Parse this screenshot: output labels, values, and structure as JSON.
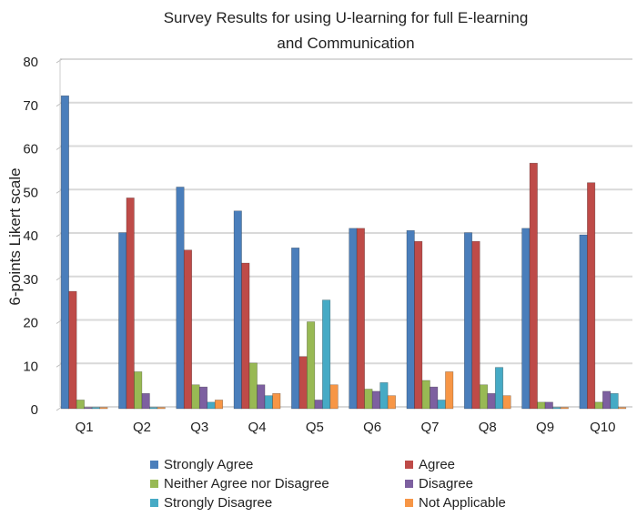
{
  "chart_data": {
    "type": "bar",
    "title": "Survey Results for using U-learning for full E-learning and Communication",
    "title_lines": [
      "Survey Results for using U-learning for full E-learning",
      "and Communication"
    ],
    "xlabel": "",
    "ylabel": "6-points Likert scale",
    "ylim": [
      0,
      80
    ],
    "yticks": [
      0,
      10,
      20,
      30,
      40,
      50,
      60,
      70,
      80
    ],
    "grid": true,
    "legend_position": "bottom",
    "categories": [
      "Q1",
      "Q2",
      "Q3",
      "Q4",
      "Q5",
      "Q6",
      "Q7",
      "Q8",
      "Q9",
      "Q10"
    ],
    "series": [
      {
        "name": "Strongly Agree",
        "color": "#4a7ebb",
        "values": [
          72,
          40.5,
          51,
          45.5,
          37,
          41.5,
          41,
          40.5,
          41.5,
          40
        ]
      },
      {
        "name": "Agree",
        "color": "#be4b48",
        "values": [
          27,
          48.5,
          36.5,
          33.5,
          12,
          41.5,
          38.5,
          38.5,
          56.5,
          52
        ]
      },
      {
        "name": "Neither Agree nor Disagree",
        "color": "#98b954",
        "values": [
          2,
          8.5,
          5.5,
          10.5,
          20,
          4.5,
          6.5,
          5.5,
          1.5,
          1.5
        ]
      },
      {
        "name": "Disagree",
        "color": "#7d60a0",
        "values": [
          0.3,
          3.5,
          5,
          5.5,
          2,
          4,
          5,
          3.5,
          1.5,
          4
        ]
      },
      {
        "name": "Strongly Disagree",
        "color": "#46aac5",
        "values": [
          0.3,
          0.3,
          1.5,
          3,
          25,
          6,
          2,
          9.5,
          0.3,
          3.5
        ]
      },
      {
        "name": "Not Applicable",
        "color": "#f79646",
        "values": [
          0.3,
          0.3,
          2,
          3.5,
          5.5,
          3,
          8.5,
          3,
          0.3,
          0.3
        ]
      }
    ]
  }
}
